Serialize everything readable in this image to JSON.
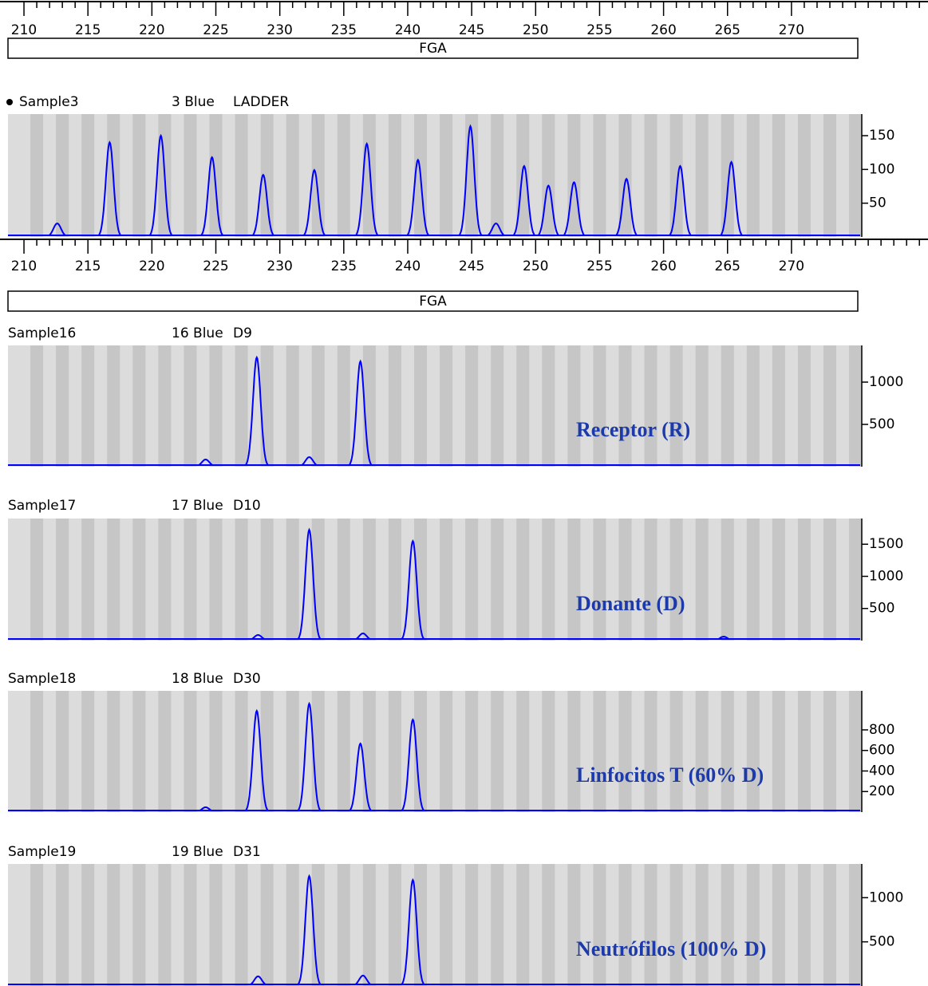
{
  "chart_data": [
    {
      "type": "ruler",
      "xlim": [
        208.75,
        275.37
      ],
      "xticks": [
        210,
        215,
        220,
        225,
        230,
        235,
        240,
        245,
        250,
        255,
        260,
        265,
        270
      ],
      "marker": "FGA"
    },
    {
      "type": "trace",
      "labels": [
        "Sample3",
        "3 Blue",
        "LADDER"
      ],
      "color": "#0000ff",
      "xlim": [
        208.75,
        275.37
      ],
      "ylim": [
        0,
        182
      ],
      "yticks": [
        50,
        100,
        150
      ],
      "x": [
        212.6,
        216.7,
        220.7,
        224.7,
        228.7,
        232.7,
        236.8,
        240.8,
        244.9,
        246.9,
        249.1,
        251.0,
        253.0,
        257.1,
        261.3,
        265.3
      ],
      "values": [
        20,
        140,
        150,
        118,
        92,
        99,
        138,
        114,
        164,
        20,
        105,
        76,
        81,
        86,
        105,
        111
      ]
    },
    {
      "type": "ruler",
      "xlim": [
        208.75,
        275.37
      ],
      "xticks": [
        210,
        215,
        220,
        225,
        230,
        235,
        240,
        245,
        250,
        255,
        260,
        265,
        270
      ],
      "marker": "FGA"
    },
    {
      "type": "trace",
      "labels": [
        "Sample16",
        "16 Blue",
        "D9"
      ],
      "annotation": "Receptor (R)",
      "color": "#0000ff",
      "xlim": [
        208.75,
        275.37
      ],
      "ylim": [
        0,
        1434
      ],
      "yticks": [
        500,
        1000
      ],
      "x": [
        224.2,
        228.2,
        232.3,
        236.3
      ],
      "values": [
        85,
        1292,
        113,
        1245
      ]
    },
    {
      "type": "trace",
      "labels": [
        "Sample17",
        "17 Blue",
        "D10"
      ],
      "annotation": "Donante (D)",
      "color": "#0000ff",
      "xlim": [
        208.75,
        275.37
      ],
      "ylim": [
        0,
        1900
      ],
      "yticks": [
        500,
        1000,
        1500
      ],
      "x": [
        228.3,
        232.3,
        236.5,
        240.4,
        264.7
      ],
      "values": [
        87,
        1725,
        112,
        1550,
        62
      ]
    },
    {
      "type": "trace",
      "labels": [
        "Sample18",
        "18 Blue",
        "D30"
      ],
      "annotation": "Linfocitos T (60% D)",
      "color": "#0000ff",
      "xlim": [
        208.75,
        275.37
      ],
      "ylim": [
        0,
        1180
      ],
      "yticks": [
        200,
        400,
        600,
        800
      ],
      "x": [
        224.2,
        228.2,
        232.3,
        236.3,
        240.4
      ],
      "values": [
        47,
        985,
        1055,
        667,
        900
      ]
    },
    {
      "type": "trace",
      "labels": [
        "Sample19",
        "19 Blue",
        "D31"
      ],
      "annotation": "Neutrófilos (100% D)",
      "color": "#0000ff",
      "xlim": [
        208.75,
        275.37
      ],
      "ylim": [
        0,
        1382
      ],
      "yticks": [
        500,
        1000
      ],
      "x": [
        228.3,
        232.3,
        236.5,
        240.4
      ],
      "values": [
        109,
        1245,
        118,
        1200
      ]
    }
  ]
}
